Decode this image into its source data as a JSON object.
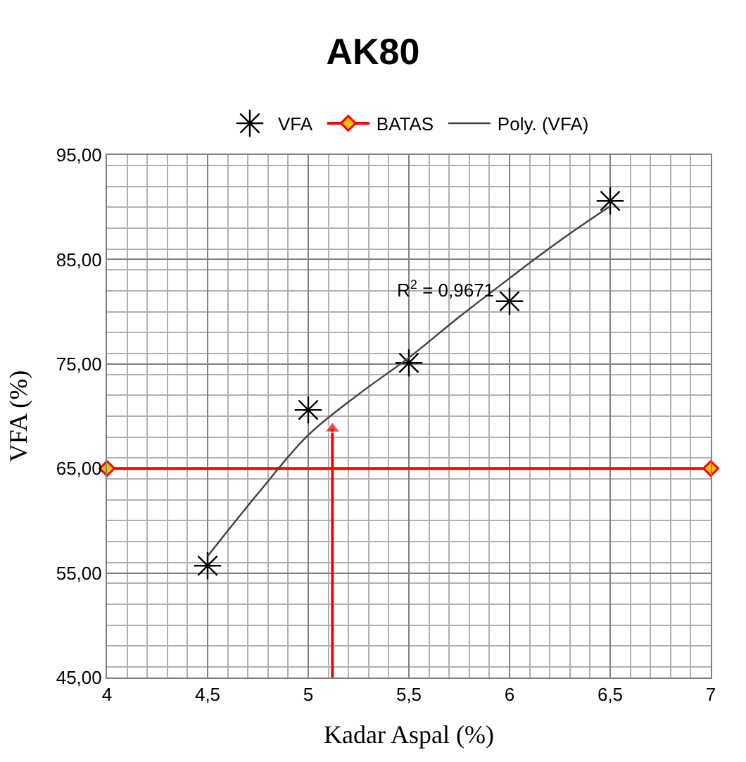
{
  "chart_data": {
    "type": "scatter",
    "title": "AK80",
    "xlabel": "Kadar Aspal (%)",
    "ylabel": "VFA (%)",
    "xlim": [
      4,
      7
    ],
    "xticks": [
      4,
      {
        "value": 4.5,
        "label": "4,5"
      },
      5,
      {
        "value": 5.5,
        "label": "5,5"
      },
      6,
      {
        "value": 6.5,
        "label": "6,5"
      },
      7
    ],
    "ylim": [
      45,
      95
    ],
    "yticks": [
      {
        "value": 45,
        "label": "45,00"
      },
      {
        "value": 55,
        "label": "55,00"
      },
      {
        "value": 65,
        "label": "65,00"
      },
      {
        "value": 75,
        "label": "75,00"
      },
      {
        "value": 85,
        "label": "85,00"
      },
      {
        "value": 95,
        "label": "95,00"
      }
    ],
    "grid": true,
    "legend": "top",
    "series": [
      {
        "name": "VFA",
        "marker": "cross",
        "color": "#000000",
        "x": [
          4.5,
          5,
          5.5,
          6,
          6.5
        ],
        "values": [
          55.7,
          70.6,
          75.1,
          81.0,
          90.6
        ]
      },
      {
        "name": "BATAS",
        "type": "line",
        "marker": "diamond",
        "color": "#ff0000",
        "x": [
          4,
          7
        ],
        "values": [
          65,
          65
        ]
      },
      {
        "name": "Poly. (VFA)",
        "type": "line",
        "marker": "none",
        "color": "#404040",
        "x": [
          4.5,
          4.75,
          5,
          5.25,
          5.5,
          5.75,
          6,
          6.25,
          6.5
        ],
        "values": [
          56.6,
          62.6,
          68.2,
          72.1,
          75.6,
          79.5,
          83.2,
          86.8,
          90.1
        ]
      },
      {
        "type": "line",
        "marker": "triangle",
        "color": "#ff0000",
        "x": [
          5.12,
          5.12
        ],
        "values": [
          45,
          68.8
        ]
      }
    ],
    "annotations": [
      "R$^{2}$ = 0,9671"
    ]
  }
}
